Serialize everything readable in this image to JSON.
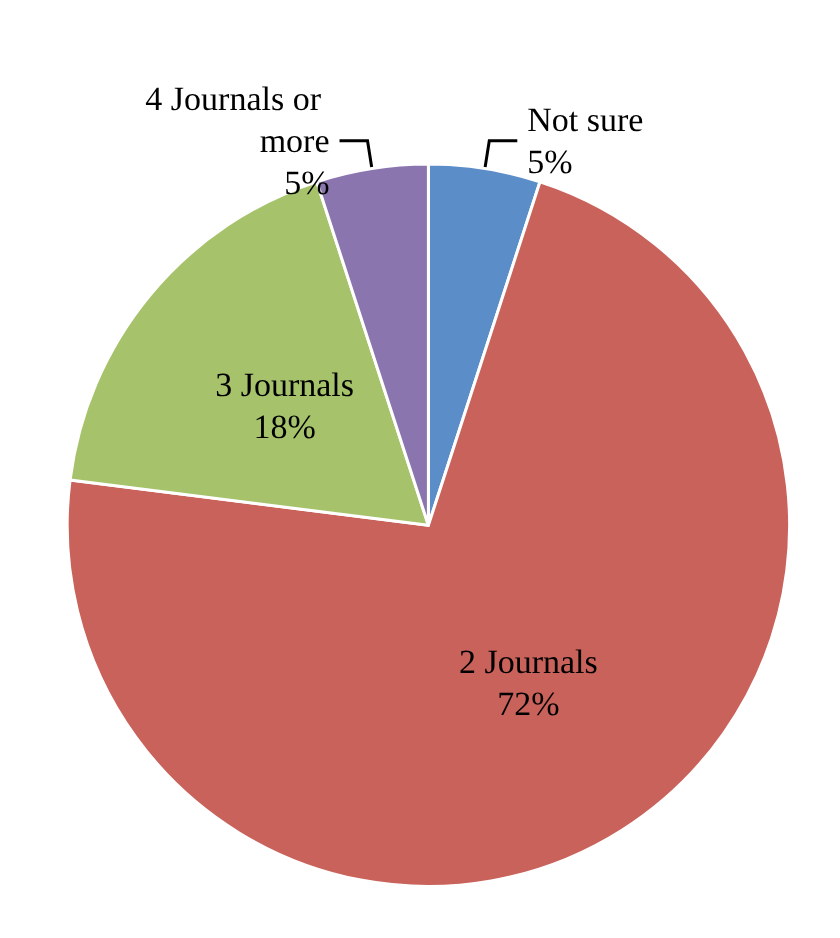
{
  "chart_data": {
    "type": "pie",
    "categories": [
      "Not sure",
      "2 Journals",
      "3 Journals",
      "4 Journals or more"
    ],
    "values": [
      5,
      72,
      18,
      5
    ],
    "value_labels": [
      "5%",
      "72%",
      "18%",
      "5%"
    ],
    "colors": [
      "#5b8ec9",
      "#c9625a",
      "#a6c26b",
      "#8b75ae"
    ],
    "legend": false
  }
}
